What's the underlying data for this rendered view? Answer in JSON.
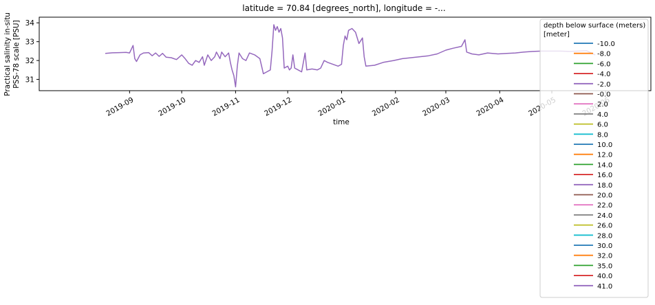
{
  "chart_data": {
    "type": "line",
    "title": "latitude = 70.84 [degrees_north], longitude = -...",
    "xlabel": "time",
    "ylabel_line1": "Practical salinity in-situ",
    "ylabel_line2": "PSS-78 scale [PSU]",
    "xlim": [
      "2019-07-11",
      "2020-06-27"
    ],
    "ylim": [
      30.4,
      34.3
    ],
    "x_ticks": [
      "2019-09",
      "2019-10",
      "2019-11",
      "2019-12",
      "2020-01",
      "2020-02",
      "2020-03",
      "2020-04",
      "2020-05",
      "2020-06"
    ],
    "x_tick_dates": [
      "2019-09-01",
      "2019-10-01",
      "2019-11-01",
      "2019-12-01",
      "2020-01-01",
      "2020-02-01",
      "2020-03-01",
      "2020-04-01",
      "2020-05-01",
      "2020-06-01"
    ],
    "y_ticks": [
      31,
      32,
      33,
      34
    ],
    "grid": false,
    "legend": {
      "title_line1": "depth below surface (meters)",
      "title_line2": "[meter]",
      "placement": "upper-right",
      "entries": [
        {
          "label": "-10.0",
          "color": "#1f77b4"
        },
        {
          "label": "-8.0",
          "color": "#ff7f0e"
        },
        {
          "label": "-6.0",
          "color": "#2ca02c"
        },
        {
          "label": "-4.0",
          "color": "#d62728"
        },
        {
          "label": "-2.0",
          "color": "#9467bd"
        },
        {
          "label": "-0.0",
          "color": "#8c564b"
        },
        {
          "label": "2.0",
          "color": "#e377c2"
        },
        {
          "label": "4.0",
          "color": "#7f7f7f"
        },
        {
          "label": "6.0",
          "color": "#bcbd22"
        },
        {
          "label": "8.0",
          "color": "#17becf"
        },
        {
          "label": "10.0",
          "color": "#1f77b4"
        },
        {
          "label": "12.0",
          "color": "#ff7f0e"
        },
        {
          "label": "14.0",
          "color": "#2ca02c"
        },
        {
          "label": "16.0",
          "color": "#d62728"
        },
        {
          "label": "18.0",
          "color": "#9467bd"
        },
        {
          "label": "20.0",
          "color": "#8c564b"
        },
        {
          "label": "22.0",
          "color": "#e377c2"
        },
        {
          "label": "24.0",
          "color": "#7f7f7f"
        },
        {
          "label": "26.0",
          "color": "#bcbd22"
        },
        {
          "label": "28.0",
          "color": "#17becf"
        },
        {
          "label": "30.0",
          "color": "#1f77b4"
        },
        {
          "label": "32.0",
          "color": "#ff7f0e"
        },
        {
          "label": "35.0",
          "color": "#2ca02c"
        },
        {
          "label": "40.0",
          "color": "#d62728"
        },
        {
          "label": "41.0",
          "color": "#9467bd"
        }
      ]
    },
    "series": [
      {
        "name": "41.0",
        "color": "#9467bd",
        "points": [
          [
            "2019-08-18",
            32.38
          ],
          [
            "2019-08-22",
            32.41
          ],
          [
            "2019-08-26",
            32.42
          ],
          [
            "2019-08-30",
            32.43
          ],
          [
            "2019-09-01",
            32.4
          ],
          [
            "2019-09-02",
            32.6
          ],
          [
            "2019-09-03",
            32.8
          ],
          [
            "2019-09-04",
            32.1
          ],
          [
            "2019-09-05",
            31.95
          ],
          [
            "2019-09-07",
            32.3
          ],
          [
            "2019-09-09",
            32.4
          ],
          [
            "2019-09-12",
            32.42
          ],
          [
            "2019-09-14",
            32.25
          ],
          [
            "2019-09-16",
            32.4
          ],
          [
            "2019-09-18",
            32.22
          ],
          [
            "2019-09-20",
            32.38
          ],
          [
            "2019-09-22",
            32.18
          ],
          [
            "2019-09-25",
            32.15
          ],
          [
            "2019-09-28",
            32.05
          ],
          [
            "2019-10-01",
            32.3
          ],
          [
            "2019-10-03",
            32.1
          ],
          [
            "2019-10-05",
            31.85
          ],
          [
            "2019-10-07",
            31.75
          ],
          [
            "2019-10-09",
            32.0
          ],
          [
            "2019-10-11",
            31.9
          ],
          [
            "2019-10-13",
            32.2
          ],
          [
            "2019-10-14",
            31.75
          ],
          [
            "2019-10-16",
            32.3
          ],
          [
            "2019-10-18",
            32.0
          ],
          [
            "2019-10-20",
            32.2
          ],
          [
            "2019-10-21",
            32.45
          ],
          [
            "2019-10-23",
            32.1
          ],
          [
            "2019-10-24",
            32.45
          ],
          [
            "2019-10-26",
            32.2
          ],
          [
            "2019-10-28",
            32.4
          ],
          [
            "2019-10-29",
            31.9
          ],
          [
            "2019-10-30",
            31.5
          ],
          [
            "2019-10-31",
            31.2
          ],
          [
            "2019-11-01",
            30.6
          ],
          [
            "2019-11-02",
            31.7
          ],
          [
            "2019-11-03",
            32.4
          ],
          [
            "2019-11-05",
            32.1
          ],
          [
            "2019-11-07",
            32.0
          ],
          [
            "2019-11-09",
            32.4
          ],
          [
            "2019-11-12",
            32.3
          ],
          [
            "2019-11-15",
            32.1
          ],
          [
            "2019-11-17",
            31.3
          ],
          [
            "2019-11-19",
            31.4
          ],
          [
            "2019-11-21",
            31.5
          ],
          [
            "2019-11-22",
            32.5
          ],
          [
            "2019-11-23",
            33.9
          ],
          [
            "2019-11-24",
            33.6
          ],
          [
            "2019-11-25",
            33.8
          ],
          [
            "2019-11-26",
            33.5
          ],
          [
            "2019-11-27",
            33.7
          ],
          [
            "2019-11-28",
            33.2
          ],
          [
            "2019-11-29",
            31.6
          ],
          [
            "2019-12-01",
            31.7
          ],
          [
            "2019-12-02",
            31.5
          ],
          [
            "2019-12-03",
            31.6
          ],
          [
            "2019-12-04",
            32.3
          ],
          [
            "2019-12-05",
            31.6
          ],
          [
            "2019-12-07",
            31.5
          ],
          [
            "2019-12-09",
            31.4
          ],
          [
            "2019-12-11",
            32.4
          ],
          [
            "2019-12-12",
            31.5
          ],
          [
            "2019-12-15",
            31.55
          ],
          [
            "2019-12-18",
            31.5
          ],
          [
            "2019-12-20",
            31.6
          ],
          [
            "2019-12-22",
            32.0
          ],
          [
            "2019-12-24",
            31.9
          ],
          [
            "2019-12-27",
            31.8
          ],
          [
            "2019-12-30",
            31.7
          ],
          [
            "2020-01-01",
            31.8
          ],
          [
            "2020-01-02",
            32.8
          ],
          [
            "2020-01-03",
            33.3
          ],
          [
            "2020-01-04",
            33.1
          ],
          [
            "2020-01-05",
            33.6
          ],
          [
            "2020-01-07",
            33.7
          ],
          [
            "2020-01-09",
            33.5
          ],
          [
            "2020-01-11",
            32.9
          ],
          [
            "2020-01-13",
            33.2
          ],
          [
            "2020-01-14",
            32.2
          ],
          [
            "2020-01-15",
            31.7
          ],
          [
            "2020-01-20",
            31.75
          ],
          [
            "2020-01-25",
            31.9
          ],
          [
            "2020-01-31",
            32.0
          ],
          [
            "2020-02-05",
            32.1
          ],
          [
            "2020-02-10",
            32.15
          ],
          [
            "2020-02-15",
            32.2
          ],
          [
            "2020-02-20",
            32.25
          ],
          [
            "2020-02-25",
            32.35
          ],
          [
            "2020-03-01",
            32.55
          ],
          [
            "2020-03-05",
            32.65
          ],
          [
            "2020-03-10",
            32.75
          ],
          [
            "2020-03-12",
            33.1
          ],
          [
            "2020-03-13",
            32.45
          ],
          [
            "2020-03-16",
            32.35
          ],
          [
            "2020-03-20",
            32.3
          ],
          [
            "2020-03-25",
            32.4
          ],
          [
            "2020-03-31",
            32.35
          ],
          [
            "2020-04-05",
            32.38
          ],
          [
            "2020-04-10",
            32.4
          ],
          [
            "2020-04-15",
            32.45
          ],
          [
            "2020-04-20",
            32.48
          ],
          [
            "2020-04-25",
            32.5
          ],
          [
            "2020-05-01",
            32.5
          ],
          [
            "2020-05-06",
            32.5
          ],
          [
            "2020-05-11",
            32.48
          ],
          [
            "2020-05-16",
            32.5
          ],
          [
            "2020-05-21",
            32.52
          ],
          [
            "2020-05-26",
            32.3
          ]
        ]
      }
    ]
  }
}
